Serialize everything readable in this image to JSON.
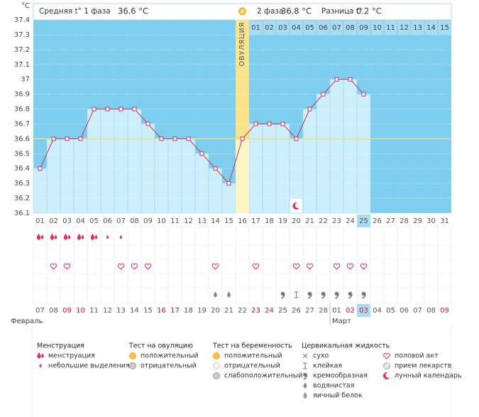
{
  "header": {
    "phase1_label": "Средняя t° 1 фаза",
    "phase1_value": "36.6 °C",
    "phase2_label": "2 фаза",
    "phase2_value": "36.8 °C",
    "diff_label": "Разница t°",
    "diff_value": "0.2 °C"
  },
  "chart_data": {
    "type": "line",
    "y_label": "°C",
    "categories": [
      "01",
      "02",
      "03",
      "04",
      "05",
      "06",
      "07",
      "08",
      "09",
      "10",
      "11",
      "12",
      "13",
      "14",
      "15",
      "16",
      "17",
      "18",
      "19",
      "20",
      "21",
      "22",
      "23",
      "24",
      "25",
      "26",
      "27",
      "28",
      "29",
      "30",
      "31"
    ],
    "values": [
      36.4,
      36.6,
      36.6,
      36.6,
      36.8,
      36.8,
      36.8,
      36.8,
      36.7,
      36.6,
      36.6,
      36.6,
      36.5,
      36.4,
      36.3,
      36.6,
      36.7,
      36.7,
      36.7,
      36.6,
      36.8,
      36.9,
      37.0,
      37.0,
      36.9,
      null,
      null,
      null,
      null,
      null,
      null
    ],
    "ylim": [
      36.1,
      37.4
    ],
    "yticks": [
      36.1,
      36.2,
      36.3,
      36.4,
      36.5,
      36.6,
      36.7,
      36.8,
      36.9,
      37,
      37.1,
      37.2,
      37.3,
      37.4
    ],
    "coverline": 36.6,
    "grid": true,
    "line_color": "#c8335a",
    "bar_color": "#cdeefd",
    "ovulation": {
      "day_index": 15,
      "label": "ОВУЛЯЦИЯ"
    },
    "phase2_days": [
      "01",
      "02",
      "03",
      "04",
      "05",
      "06",
      "07",
      "08",
      "09",
      "10",
      "11",
      "12",
      "13",
      "14",
      "15"
    ],
    "moon_day_index": 19,
    "highlight_index": 24
  },
  "symbols": {
    "menstruation": [
      "drop-heavy",
      "drop-heavy",
      "drop-heavy",
      "drop-heavy",
      "drop-heavy",
      "drop-light",
      "drop-light",
      null,
      null,
      null,
      null,
      null,
      null,
      null,
      null,
      null,
      null,
      null,
      null,
      null,
      null,
      null,
      null,
      null,
      null,
      null,
      null,
      null,
      null,
      null,
      null
    ],
    "intercourse": [
      null,
      "heart",
      "heart",
      null,
      null,
      null,
      "heart",
      "heart",
      "heart",
      null,
      null,
      null,
      null,
      "heart",
      null,
      null,
      "heart",
      null,
      null,
      "heart",
      "heart",
      null,
      "heart",
      "heart",
      "heart",
      null,
      null,
      null,
      null,
      null,
      null
    ],
    "cervical_fluid": [
      null,
      null,
      null,
      null,
      null,
      null,
      null,
      null,
      null,
      null,
      null,
      null,
      null,
      "drop-gray",
      "drop-gray",
      null,
      null,
      null,
      "comma",
      "sticky",
      "comma",
      "comma",
      "comma",
      "comma",
      "comma",
      null,
      null,
      null,
      null,
      null,
      null
    ]
  },
  "dates": [
    {
      "label": "07",
      "weekend": false
    },
    {
      "label": "08",
      "weekend": false
    },
    {
      "label": "09",
      "weekend": true
    },
    {
      "label": "10",
      "weekend": true
    },
    {
      "label": "11",
      "weekend": false
    },
    {
      "label": "12",
      "weekend": false
    },
    {
      "label": "13",
      "weekend": false
    },
    {
      "label": "14",
      "weekend": false
    },
    {
      "label": "15",
      "weekend": false
    },
    {
      "label": "16",
      "weekend": true
    },
    {
      "label": "17",
      "weekend": true
    },
    {
      "label": "18",
      "weekend": false
    },
    {
      "label": "19",
      "weekend": false
    },
    {
      "label": "20",
      "weekend": false
    },
    {
      "label": "21",
      "weekend": false
    },
    {
      "label": "22",
      "weekend": false
    },
    {
      "label": "23",
      "weekend": true
    },
    {
      "label": "24",
      "weekend": true
    },
    {
      "label": "25",
      "weekend": false
    },
    {
      "label": "26",
      "weekend": false
    },
    {
      "label": "27",
      "weekend": false
    },
    {
      "label": "28",
      "weekend": false
    },
    {
      "label": "01",
      "weekend": false
    },
    {
      "label": "02",
      "weekend": true
    },
    {
      "label": "03",
      "weekend": true
    },
    {
      "label": "04",
      "weekend": false
    },
    {
      "label": "05",
      "weekend": false
    },
    {
      "label": "06",
      "weekend": false
    },
    {
      "label": "07",
      "weekend": false
    },
    {
      "label": "08",
      "weekend": false
    },
    {
      "label": "09",
      "weekend": true
    }
  ],
  "months": [
    "Февраль",
    "Март"
  ],
  "legend": [
    {
      "title": "Менструация",
      "items": [
        {
          "icon": "drop-heavy",
          "label": "менструация"
        },
        {
          "icon": "drop-light",
          "label": "небольшие выделения"
        }
      ]
    },
    {
      "title": "Тест на овуляцию",
      "items": [
        {
          "icon": "sun",
          "label": "положительный"
        },
        {
          "icon": "gray-circle",
          "label": "отрицательный"
        }
      ]
    },
    {
      "title": "Тест на беременность",
      "items": [
        {
          "icon": "sun",
          "label": "положительный"
        },
        {
          "icon": "pale-circle",
          "label": "отрицательный"
        },
        {
          "icon": "gray-circle",
          "label": "слабоположительный"
        }
      ]
    },
    {
      "title": "Цервикальная жидкость",
      "items": [
        {
          "icon": "x",
          "label": "сухо"
        },
        {
          "icon": "sticky",
          "label": "клейкая"
        },
        {
          "icon": "comma",
          "label": "кремообразная"
        },
        {
          "icon": "drop-gray",
          "label": "водянистая"
        },
        {
          "icon": "egg",
          "label": "яичный белок"
        }
      ]
    },
    {
      "items": [
        {
          "icon": "heart",
          "label": "половой акт"
        },
        {
          "icon": "pill",
          "label": "прием лекарств"
        },
        {
          "icon": "moon",
          "label": "лунный календарь"
        }
      ]
    }
  ]
}
